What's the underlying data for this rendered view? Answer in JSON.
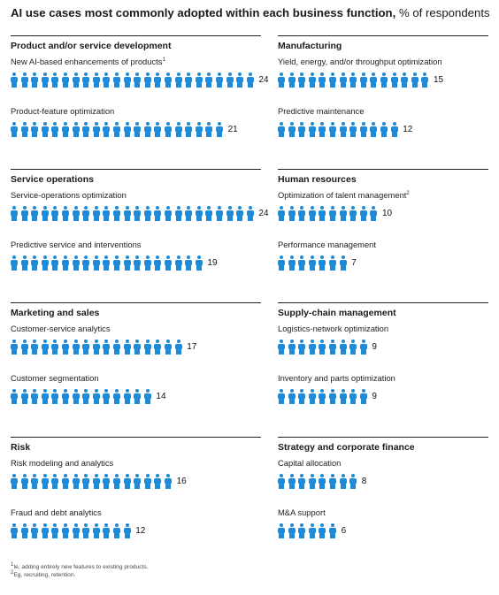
{
  "title": {
    "bold": "AI use cases most commonly adopted within each business function,",
    "unit": " % of respondents"
  },
  "colors": {
    "figure": "#1e8ad8",
    "rule": "#222222"
  },
  "icon": "person-icon",
  "chart_data": {
    "type": "pictograph",
    "unit": "% of respondents",
    "groups": [
      {
        "name": "Product and/or service development",
        "items": [
          {
            "label": "New AI-based enhancements of products",
            "footnote": "1",
            "value": 24
          },
          {
            "label": "Product-feature optimization",
            "value": 21
          }
        ]
      },
      {
        "name": "Manufacturing",
        "items": [
          {
            "label": "Yield, energy, and/or throughput optimization",
            "value": 15
          },
          {
            "label": "Predictive maintenance",
            "value": 12
          }
        ]
      },
      {
        "name": "Service operations",
        "items": [
          {
            "label": "Service-operations optimization",
            "value": 24
          },
          {
            "label": "Predictive service and interventions",
            "value": 19
          }
        ]
      },
      {
        "name": "Human resources",
        "items": [
          {
            "label": "Optimization of talent management",
            "footnote": "2",
            "value": 10
          },
          {
            "label": "Performance management",
            "value": 7
          }
        ]
      },
      {
        "name": "Marketing and sales",
        "items": [
          {
            "label": "Customer-service analytics",
            "value": 17
          },
          {
            "label": "Customer segmentation",
            "value": 14
          }
        ]
      },
      {
        "name": "Supply-chain management",
        "items": [
          {
            "label": "Logistics-network optimization",
            "value": 9
          },
          {
            "label": "Inventory and parts optimization",
            "value": 9
          }
        ]
      },
      {
        "name": "Risk",
        "items": [
          {
            "label": "Risk modeling and analytics",
            "value": 16
          },
          {
            "label": "Fraud and debt analytics",
            "value": 12
          }
        ]
      },
      {
        "name": "Strategy and corporate finance",
        "items": [
          {
            "label": "Capital allocation",
            "value": 8
          },
          {
            "label": "M&A support",
            "value": 6
          }
        ]
      }
    ]
  },
  "footnotes": [
    {
      "mark": "1",
      "text": "Ie, adding entirely new features to existing products."
    },
    {
      "mark": "2",
      "text": "Eg, recruiting, retention."
    }
  ]
}
